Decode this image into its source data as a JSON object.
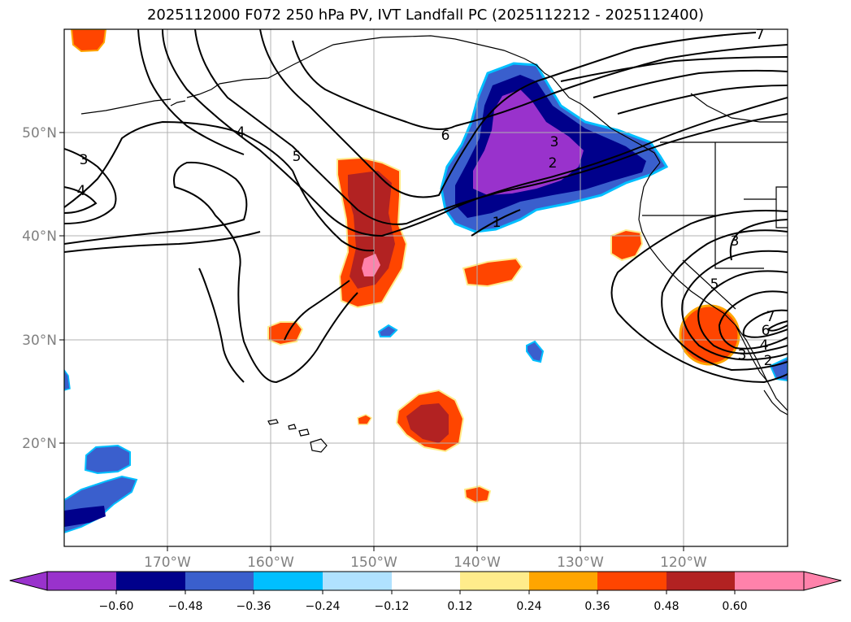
{
  "title": "2025112000 F072 250 hPa PV, IVT Landfall PC (2025112212 - 2025112400)",
  "map": {
    "lon_range": [
      180,
      110
    ],
    "lat_range": [
      10,
      60
    ],
    "lon_ticks": [
      {
        "lon": 170,
        "label": "170°W"
      },
      {
        "lon": 160,
        "label": "160°W"
      },
      {
        "lon": 150,
        "label": "150°W"
      },
      {
        "lon": 140,
        "label": "140°W"
      },
      {
        "lon": 130,
        "label": "130°W"
      },
      {
        "lon": 120,
        "label": "120°W"
      }
    ],
    "lat_ticks": [
      {
        "lat": 50,
        "label": "50°N"
      },
      {
        "lat": 40,
        "label": "40°N"
      },
      {
        "lat": 30,
        "label": "30°N"
      },
      {
        "lat": 20,
        "label": "20°N"
      }
    ],
    "grid": true,
    "tick_label_color": "#808080",
    "contour_labels": [
      "1",
      "2",
      "3",
      "4",
      "5",
      "6",
      "7"
    ],
    "contour_label_list": [
      {
        "text": "3",
        "key": "a"
      },
      {
        "text": "4",
        "key": "b"
      },
      {
        "text": "4",
        "key": "c"
      },
      {
        "text": "5",
        "key": "d"
      },
      {
        "text": "6",
        "key": "e"
      },
      {
        "text": "3",
        "key": "f"
      },
      {
        "text": "2",
        "key": "g"
      },
      {
        "text": "1",
        "key": "h"
      },
      {
        "text": "3",
        "key": "i"
      },
      {
        "text": "5",
        "key": "j"
      },
      {
        "text": "7",
        "key": "k"
      },
      {
        "text": "6",
        "key": "l"
      },
      {
        "text": "4",
        "key": "m"
      },
      {
        "text": "3",
        "key": "n"
      },
      {
        "text": "2",
        "key": "o"
      },
      {
        "text": "7",
        "key": "p"
      }
    ]
  },
  "colorbar": {
    "ticks": [
      "−0.60",
      "−0.48",
      "−0.36",
      "−0.24",
      "−0.12",
      "0.12",
      "0.24",
      "0.36",
      "0.48",
      "0.60"
    ],
    "colors": [
      "#9932cc",
      "#00008b",
      "#3a5fcd",
      "#00bfff",
      "#b0e2ff",
      "#ffffff",
      "#ffec8b",
      "#ffa500",
      "#ff4500",
      "#b22222",
      "#ff82ab"
    ],
    "extend": "both"
  }
}
